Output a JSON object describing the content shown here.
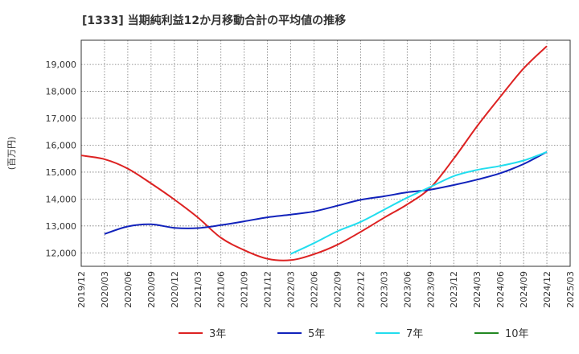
{
  "chart_data": {
    "type": "line",
    "title": "[1333]  当期純利益12か月移動合計の平均値の推移",
    "xlabel": "",
    "ylabel": "(百万円)",
    "x_ticks": [
      "2019/12",
      "2020/03",
      "2020/06",
      "2020/09",
      "2020/12",
      "2021/03",
      "2021/06",
      "2021/09",
      "2021/12",
      "2022/03",
      "2022/06",
      "2022/09",
      "2022/12",
      "2023/03",
      "2023/06",
      "2023/09",
      "2023/12",
      "2024/03",
      "2024/06",
      "2024/09",
      "2024/12",
      "2025/03"
    ],
    "y_ticks": [
      "12,000",
      "13,000",
      "14,000",
      "15,000",
      "16,000",
      "17,000",
      "18,000",
      "19,000"
    ],
    "y_tick_values": [
      12000,
      13000,
      14000,
      15000,
      16000,
      17000,
      18000,
      19000
    ],
    "ylim": [
      11500,
      19900
    ],
    "grid": true,
    "legend_position": "bottom",
    "series": [
      {
        "name": "3年",
        "color": "#dd2222",
        "x": [
          "2019/12",
          "2020/03",
          "2020/06",
          "2020/09",
          "2020/12",
          "2021/03",
          "2021/06",
          "2021/09",
          "2021/12",
          "2022/03",
          "2022/06",
          "2022/09",
          "2022/12",
          "2023/03",
          "2023/06",
          "2023/09",
          "2023/12",
          "2024/03",
          "2024/06",
          "2024/09",
          "2024/12"
        ],
        "values": [
          15620,
          15480,
          15130,
          14580,
          13980,
          13320,
          12560,
          12100,
          11780,
          11730,
          11950,
          12300,
          12780,
          13300,
          13800,
          14420,
          15500,
          16700,
          17800,
          18850,
          19680
        ]
      },
      {
        "name": "5年",
        "color": "#1122bb",
        "x": [
          "2020/03",
          "2020/06",
          "2020/09",
          "2020/12",
          "2021/03",
          "2021/06",
          "2021/09",
          "2021/12",
          "2022/03",
          "2022/06",
          "2022/09",
          "2022/12",
          "2023/03",
          "2023/06",
          "2023/09",
          "2023/12",
          "2024/03",
          "2024/06",
          "2024/09",
          "2024/12"
        ],
        "values": [
          12700,
          12980,
          13060,
          12930,
          12920,
          13030,
          13170,
          13320,
          13420,
          13540,
          13750,
          13970,
          14100,
          14250,
          14350,
          14520,
          14720,
          14960,
          15300,
          15750
        ]
      },
      {
        "name": "7年",
        "color": "#22ddee",
        "x": [
          "2022/03",
          "2022/06",
          "2022/09",
          "2022/12",
          "2023/03",
          "2023/06",
          "2023/09",
          "2023/12",
          "2024/03",
          "2024/06",
          "2024/09",
          "2024/12"
        ],
        "values": [
          11960,
          12360,
          12800,
          13150,
          13600,
          14050,
          14450,
          14850,
          15080,
          15230,
          15430,
          15750
        ]
      },
      {
        "name": "10年",
        "color": "#228822",
        "x": [],
        "values": []
      }
    ]
  }
}
